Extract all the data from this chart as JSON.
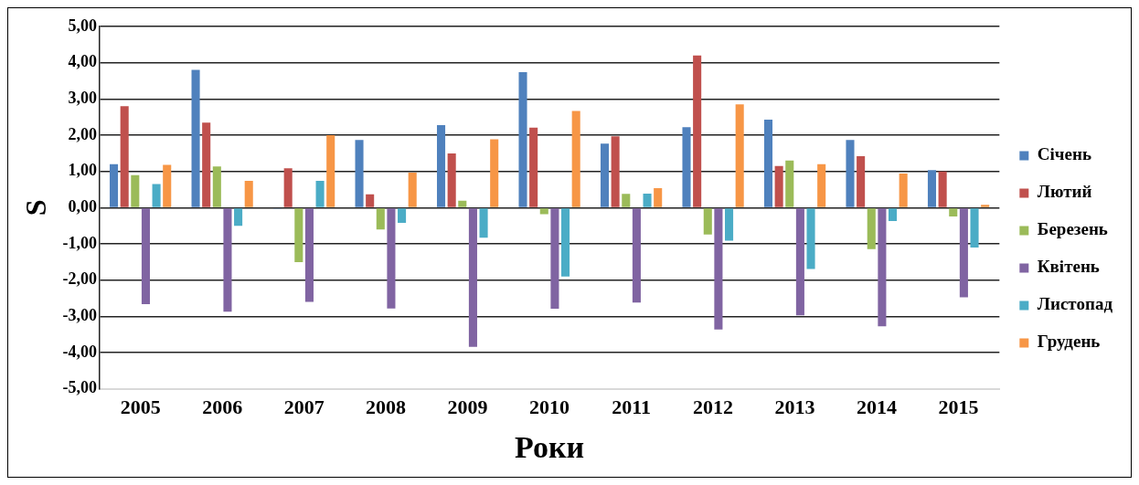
{
  "chart_data": {
    "type": "bar",
    "xlabel": "Роки",
    "ylabel": "S",
    "categories": [
      "2005",
      "2006",
      "2007",
      "2008",
      "2009",
      "2010",
      "2011",
      "2012",
      "2013",
      "2014",
      "2015"
    ],
    "series": [
      {
        "name": "Січень",
        "color": "#4f81bd",
        "values": [
          1.2,
          3.8,
          -0.03,
          1.87,
          2.28,
          3.74,
          1.77,
          2.22,
          2.43,
          1.87,
          1.04
        ]
      },
      {
        "name": "Лютий",
        "color": "#c0504d",
        "values": [
          2.8,
          2.35,
          1.09,
          0.37,
          1.5,
          2.21,
          1.97,
          4.2,
          1.15,
          1.42,
          1.0
        ]
      },
      {
        "name": "Березень",
        "color": "#9bbb59",
        "values": [
          0.9,
          1.14,
          -1.5,
          -0.6,
          0.19,
          -0.18,
          0.38,
          -0.74,
          1.3,
          -1.14,
          -0.24
        ]
      },
      {
        "name": "Квітень",
        "color": "#8064a2",
        "values": [
          -2.66,
          -2.87,
          -2.6,
          -2.78,
          -3.84,
          -2.79,
          -2.62,
          -3.36,
          -2.97,
          -3.27,
          -2.47
        ]
      },
      {
        "name": "Листопад",
        "color": "#4bacc6",
        "values": [
          0.65,
          -0.5,
          0.74,
          -0.42,
          -0.83,
          -1.9,
          0.39,
          -0.91,
          -1.69,
          -0.37,
          -1.1
        ]
      },
      {
        "name": "Грудень",
        "color": "#f79646",
        "values": [
          1.18,
          0.74,
          2.0,
          0.97,
          1.89,
          2.67,
          0.54,
          2.85,
          1.2,
          0.94,
          0.08
        ]
      }
    ],
    "ylim": [
      -5,
      5
    ],
    "yticks": [
      {
        "value": -5,
        "label": "-5,00"
      },
      {
        "value": -4,
        "label": "-4,00"
      },
      {
        "value": -3,
        "label": "-3,00"
      },
      {
        "value": -2,
        "label": "-2,00"
      },
      {
        "value": -1,
        "label": "-1,00"
      },
      {
        "value": 0,
        "label": "0,00"
      },
      {
        "value": 1,
        "label": "1,00"
      },
      {
        "value": 2,
        "label": "2,00"
      },
      {
        "value": 3,
        "label": "3,00"
      },
      {
        "value": 4,
        "label": "4,00"
      },
      {
        "value": 5,
        "label": "5,00"
      }
    ],
    "grid": "y",
    "legend": "right"
  }
}
